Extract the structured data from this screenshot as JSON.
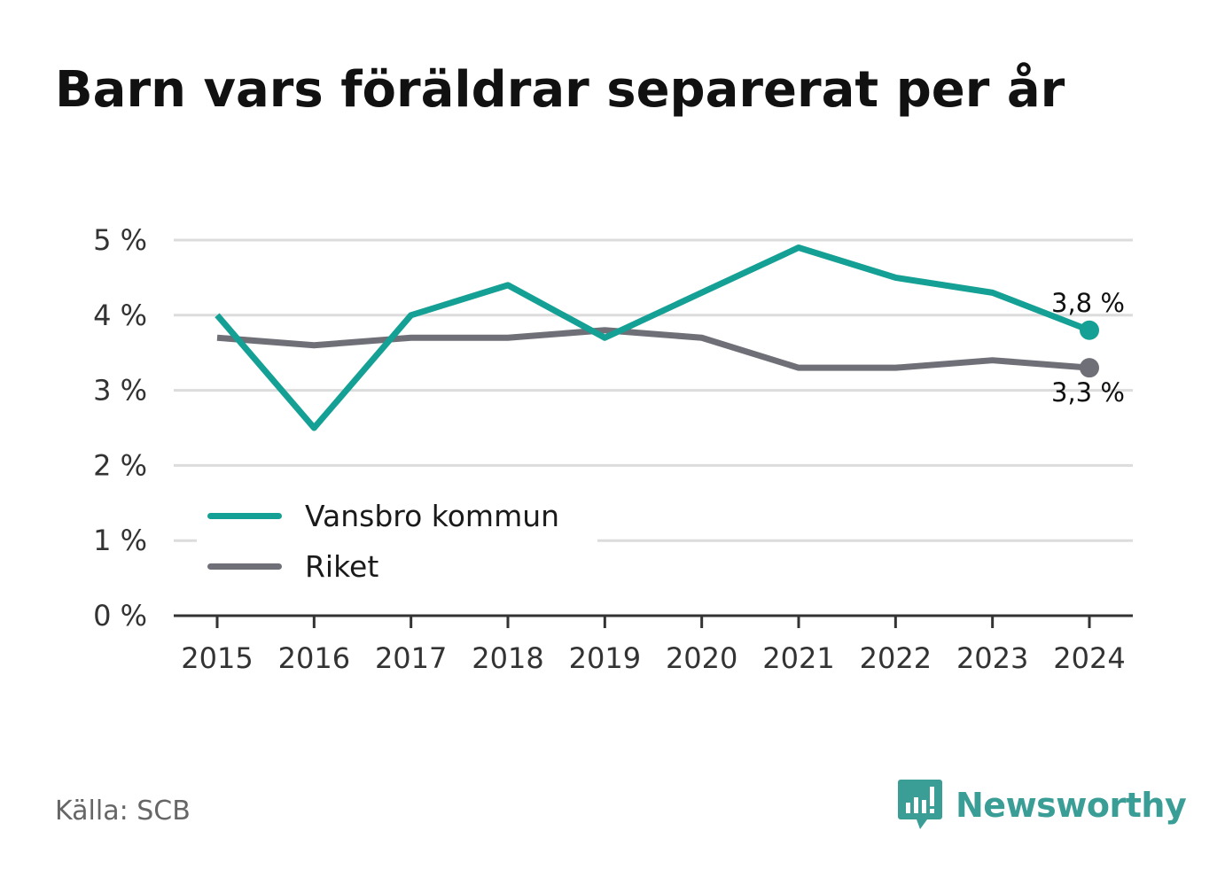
{
  "title": "Barn vars föräldrar separerat per år",
  "source": "Källa: SCB",
  "brand": {
    "name": "Newsworthy",
    "icon": "newsworthy-logo-icon",
    "color": "#3a9e97"
  },
  "chart_data": {
    "type": "line",
    "title": "Barn vars föräldrar separerat per år",
    "xlabel": "",
    "ylabel": "",
    "x": [
      "2015",
      "2016",
      "2017",
      "2018",
      "2019",
      "2020",
      "2021",
      "2022",
      "2023",
      "2024"
    ],
    "ylim": [
      0,
      5
    ],
    "yticks": [
      0,
      1,
      2,
      3,
      4,
      5
    ],
    "ytick_labels": [
      "0 %",
      "1 %",
      "2 %",
      "3 %",
      "4 %",
      "5 %"
    ],
    "grid": true,
    "legend": "lower-left",
    "series": [
      {
        "name": "Vansbro kommun",
        "color": "#14a095",
        "values": [
          4.0,
          2.5,
          4.0,
          4.4,
          3.7,
          4.3,
          4.9,
          4.5,
          4.3,
          3.8
        ],
        "end_label": "3,8 %"
      },
      {
        "name": "Riket",
        "color": "#6f6f78",
        "values": [
          3.7,
          3.6,
          3.7,
          3.7,
          3.8,
          3.7,
          3.3,
          3.3,
          3.4,
          3.3
        ],
        "end_label": "3,3 %"
      }
    ]
  }
}
